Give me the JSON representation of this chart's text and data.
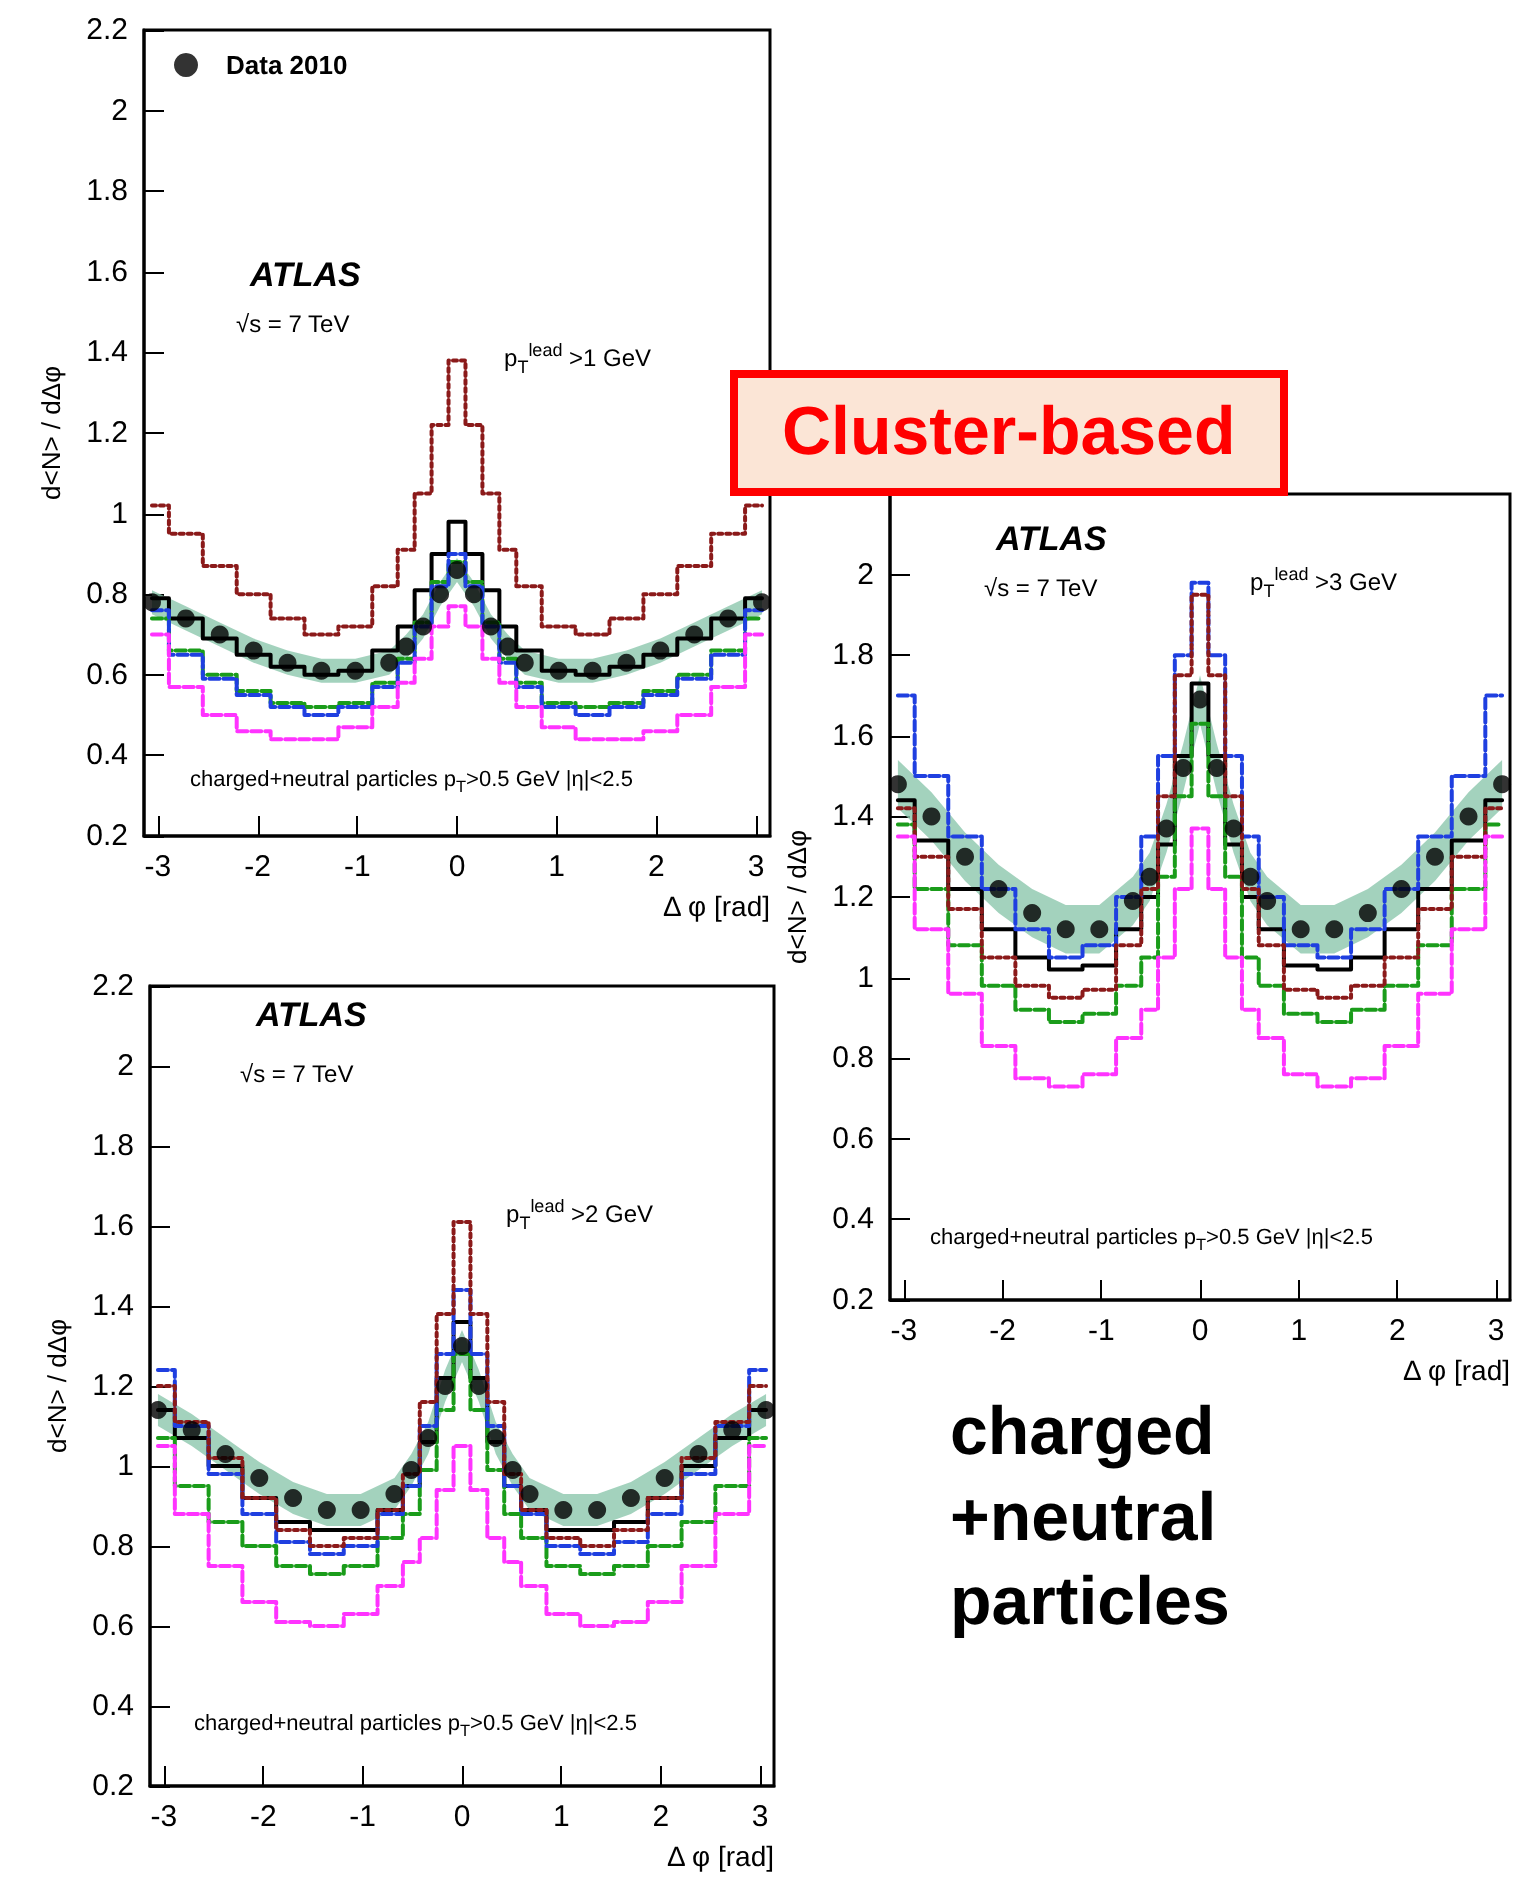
{
  "chart_data": [
    {
      "type": "step",
      "xlabel": "Δ φ [rad]",
      "ylabel": "d<N> / dΔφ",
      "xlim": [
        -3.14,
        3.14
      ],
      "ylim": [
        0.2,
        2.2
      ],
      "xticks": [
        -3,
        -2,
        -1,
        0,
        1,
        2,
        3
      ],
      "yticks": [
        0.2,
        0.4,
        0.6,
        0.8,
        1,
        1.2,
        1.4,
        1.6,
        1.8,
        2,
        2.2
      ],
      "grid": false,
      "legend": "top left",
      "annotations": [
        "ATLAS",
        "√s = 7 TeV",
        "p$_{T}$$^{lead}$ >1 GeV",
        "charged+neutral particles p$_{T}$>0.5 GeV  |η|<2.5"
      ],
      "x": [
        -3.06,
        -2.72,
        -2.38,
        -2.04,
        -1.7,
        -1.36,
        -1.02,
        -0.68,
        -0.51,
        -0.34,
        -0.17,
        0,
        0.17,
        0.34,
        0.51,
        0.68,
        1.02,
        1.36,
        1.7,
        2.04,
        2.38,
        2.72,
        3.06
      ],
      "series": [
        {
          "name": "Data 2010",
          "type": "scatter",
          "marker": "circle",
          "color": "#000000",
          "values": [
            0.78,
            0.74,
            0.7,
            0.66,
            0.63,
            0.61,
            0.61,
            0.63,
            0.67,
            0.72,
            0.8,
            0.86,
            0.8,
            0.72,
            0.67,
            0.63,
            0.61,
            0.61,
            0.63,
            0.66,
            0.7,
            0.74,
            0.78
          ],
          "lower": [
            0.75,
            0.71,
            0.67,
            0.63,
            0.6,
            0.58,
            0.58,
            0.6,
            0.64,
            0.69,
            0.77,
            0.83,
            0.77,
            0.69,
            0.64,
            0.6,
            0.58,
            0.58,
            0.6,
            0.63,
            0.67,
            0.71,
            0.75
          ],
          "upper": [
            0.81,
            0.77,
            0.73,
            0.69,
            0.66,
            0.64,
            0.64,
            0.66,
            0.7,
            0.75,
            0.83,
            0.89,
            0.83,
            0.75,
            0.7,
            0.66,
            0.64,
            0.64,
            0.66,
            0.69,
            0.73,
            0.77,
            0.81
          ]
        },
        {
          "color": "#000000",
          "line_style": "solid",
          "values": [
            0.79,
            0.74,
            0.69,
            0.65,
            0.62,
            0.6,
            0.61,
            0.66,
            0.72,
            0.81,
            0.9,
            0.98,
            0.9,
            0.81,
            0.72,
            0.66,
            0.61,
            0.6,
            0.62,
            0.65,
            0.69,
            0.74,
            0.79
          ]
        },
        {
          "color": "#1a9c1a",
          "line_style": "dashed",
          "values": [
            0.74,
            0.66,
            0.6,
            0.56,
            0.53,
            0.52,
            0.53,
            0.58,
            0.64,
            0.73,
            0.83,
            0.88,
            0.83,
            0.73,
            0.64,
            0.58,
            0.53,
            0.52,
            0.53,
            0.56,
            0.6,
            0.66,
            0.74
          ]
        },
        {
          "color": "#1f3fe0",
          "line_style": "dashed",
          "values": [
            0.76,
            0.65,
            0.59,
            0.55,
            0.52,
            0.5,
            0.52,
            0.57,
            0.63,
            0.72,
            0.82,
            0.9,
            0.82,
            0.72,
            0.63,
            0.57,
            0.52,
            0.5,
            0.52,
            0.55,
            0.59,
            0.65,
            0.76
          ]
        },
        {
          "color": "#8b1a1a",
          "line_style": "dotted",
          "values": [
            1.02,
            0.95,
            0.87,
            0.8,
            0.74,
            0.7,
            0.72,
            0.82,
            0.91,
            1.05,
            1.22,
            1.38,
            1.22,
            1.05,
            0.91,
            0.82,
            0.72,
            0.7,
            0.74,
            0.8,
            0.87,
            0.95,
            1.02
          ]
        },
        {
          "color": "#ff33ff",
          "line_style": "dashed",
          "values": [
            0.7,
            0.57,
            0.5,
            0.46,
            0.44,
            0.44,
            0.47,
            0.52,
            0.58,
            0.64,
            0.72,
            0.77,
            0.72,
            0.64,
            0.58,
            0.52,
            0.47,
            0.44,
            0.44,
            0.46,
            0.5,
            0.57,
            0.7
          ]
        }
      ]
    },
    {
      "type": "step",
      "title": "Cluster-based",
      "xlabel": "Δ φ [rad]",
      "ylabel": "d<N> / dΔφ",
      "xlim": [
        -3.14,
        3.14
      ],
      "ylim": [
        0.2,
        2.2
      ],
      "xticks": [
        -3,
        -2,
        -1,
        0,
        1,
        2,
        3
      ],
      "yticks": [
        0.2,
        0.4,
        0.6,
        0.8,
        1,
        1.2,
        1.4,
        1.6,
        1.8,
        2,
        {
          "value": 2.2,
          "label": null
        }
      ],
      "grid": false,
      "annotations": [
        "ATLAS",
        "√s = 7 TeV",
        "p$_{T}$$^{lead}$ >3 GeV",
        "charged+neutral particles p$_{T}$>0.5 GeV  |η|<2.5",
        "charged +neutral particles"
      ],
      "x": [
        -3.06,
        -2.72,
        -2.38,
        -2.04,
        -1.7,
        -1.36,
        -1.02,
        -0.68,
        -0.51,
        -0.34,
        -0.17,
        0,
        0.17,
        0.34,
        0.51,
        0.68,
        1.02,
        1.36,
        1.7,
        2.04,
        2.38,
        2.72,
        3.06
      ],
      "series": [
        {
          "type": "scatter",
          "marker": "circle",
          "color": "#000000",
          "values": [
            1.48,
            1.4,
            1.3,
            1.22,
            1.16,
            1.12,
            1.12,
            1.19,
            1.25,
            1.37,
            1.52,
            1.69,
            1.52,
            1.37,
            1.25,
            1.19,
            1.12,
            1.12,
            1.16,
            1.22,
            1.3,
            1.4,
            1.48
          ],
          "lower": [
            1.42,
            1.34,
            1.24,
            1.16,
            1.1,
            1.06,
            1.06,
            1.13,
            1.19,
            1.31,
            1.46,
            1.63,
            1.46,
            1.31,
            1.19,
            1.13,
            1.06,
            1.06,
            1.1,
            1.16,
            1.24,
            1.34,
            1.42
          ],
          "upper": [
            1.54,
            1.46,
            1.36,
            1.28,
            1.22,
            1.18,
            1.18,
            1.25,
            1.31,
            1.43,
            1.58,
            1.75,
            1.58,
            1.43,
            1.31,
            1.25,
            1.18,
            1.18,
            1.22,
            1.28,
            1.36,
            1.46,
            1.54
          ]
        },
        {
          "color": "#000000",
          "line_style": "solid",
          "values": [
            1.44,
            1.34,
            1.22,
            1.12,
            1.05,
            1.02,
            1.03,
            1.12,
            1.2,
            1.33,
            1.55,
            1.73,
            1.55,
            1.33,
            1.2,
            1.12,
            1.03,
            1.02,
            1.05,
            1.12,
            1.22,
            1.34,
            1.44
          ]
        },
        {
          "color": "#1a9c1a",
          "line_style": "dashed",
          "values": [
            1.38,
            1.22,
            1.08,
            0.98,
            0.92,
            0.89,
            0.91,
            0.98,
            1.05,
            1.25,
            1.45,
            1.63,
            1.45,
            1.25,
            1.05,
            0.98,
            0.91,
            0.89,
            0.92,
            0.98,
            1.08,
            1.22,
            1.38
          ]
        },
        {
          "color": "#1f3fe0",
          "line_style": "dashed",
          "values": [
            1.7,
            1.5,
            1.35,
            1.22,
            1.12,
            1.05,
            1.08,
            1.2,
            1.35,
            1.55,
            1.8,
            1.98,
            1.8,
            1.55,
            1.35,
            1.2,
            1.08,
            1.05,
            1.12,
            1.22,
            1.35,
            1.5,
            1.7
          ]
        },
        {
          "color": "#8b1a1a",
          "line_style": "dotted",
          "values": [
            1.42,
            1.3,
            1.17,
            1.05,
            0.98,
            0.95,
            0.97,
            1.08,
            1.22,
            1.45,
            1.75,
            1.95,
            1.75,
            1.45,
            1.22,
            1.08,
            0.97,
            0.95,
            0.98,
            1.05,
            1.17,
            1.3,
            1.42
          ]
        },
        {
          "color": "#ff33ff",
          "line_style": "dashed",
          "values": [
            1.35,
            1.12,
            0.96,
            0.83,
            0.75,
            0.73,
            0.76,
            0.85,
            0.92,
            1.05,
            1.22,
            1.37,
            1.22,
            1.05,
            0.92,
            0.85,
            0.76,
            0.73,
            0.75,
            0.83,
            0.96,
            1.12,
            1.35
          ]
        }
      ]
    },
    {
      "type": "step",
      "xlabel": "Δ φ [rad]",
      "ylabel": "d<N> / dΔφ",
      "xlim": [
        -3.14,
        3.14
      ],
      "ylim": [
        0.2,
        2.2
      ],
      "xticks": [
        -3,
        -2,
        -1,
        0,
        1,
        2,
        3
      ],
      "yticks": [
        0.2,
        0.4,
        0.6,
        0.8,
        1,
        1.2,
        1.4,
        1.6,
        1.8,
        2,
        2.2
      ],
      "grid": false,
      "annotations": [
        "ATLAS",
        "√s = 7 TeV",
        "p$_{T}$$^{lead}$ >2 GeV",
        "charged+neutral particles p$_{T}$>0.5 GeV  |η|<2.5"
      ],
      "x": [
        -3.06,
        -2.72,
        -2.38,
        -2.04,
        -1.7,
        -1.36,
        -1.02,
        -0.68,
        -0.51,
        -0.34,
        -0.17,
        0,
        0.17,
        0.34,
        0.51,
        0.68,
        1.02,
        1.36,
        1.7,
        2.04,
        2.38,
        2.72,
        3.06
      ],
      "series": [
        {
          "type": "scatter",
          "marker": "circle",
          "color": "#000000",
          "values": [
            1.14,
            1.09,
            1.03,
            0.97,
            0.92,
            0.89,
            0.89,
            0.93,
            0.99,
            1.07,
            1.2,
            1.3,
            1.2,
            1.07,
            0.99,
            0.93,
            0.89,
            0.89,
            0.92,
            0.97,
            1.03,
            1.09,
            1.14
          ],
          "lower": [
            1.1,
            1.05,
            0.99,
            0.93,
            0.88,
            0.85,
            0.85,
            0.89,
            0.95,
            1.03,
            1.16,
            1.26,
            1.16,
            1.03,
            0.95,
            0.89,
            0.85,
            0.85,
            0.88,
            0.93,
            0.99,
            1.05,
            1.1
          ],
          "upper": [
            1.18,
            1.13,
            1.07,
            1.01,
            0.96,
            0.93,
            0.93,
            0.97,
            1.03,
            1.11,
            1.24,
            1.34,
            1.24,
            1.11,
            1.03,
            0.97,
            0.93,
            0.93,
            0.96,
            1.01,
            1.07,
            1.13,
            1.18
          ]
        },
        {
          "color": "#000000",
          "line_style": "solid",
          "values": [
            1.14,
            1.07,
            1.0,
            0.92,
            0.86,
            0.84,
            0.84,
            0.89,
            0.95,
            1.06,
            1.22,
            1.36,
            1.22,
            1.06,
            0.95,
            0.89,
            0.84,
            0.84,
            0.86,
            0.92,
            1.0,
            1.07,
            1.14
          ]
        },
        {
          "color": "#1a9c1a",
          "line_style": "dashed",
          "values": [
            1.07,
            0.95,
            0.86,
            0.8,
            0.75,
            0.73,
            0.75,
            0.82,
            0.88,
            0.99,
            1.14,
            1.28,
            1.14,
            0.99,
            0.88,
            0.82,
            0.75,
            0.73,
            0.75,
            0.8,
            0.86,
            0.95,
            1.07
          ]
        },
        {
          "color": "#1f3fe0",
          "line_style": "dashed",
          "values": [
            1.24,
            1.1,
            0.98,
            0.88,
            0.81,
            0.78,
            0.8,
            0.88,
            0.95,
            1.1,
            1.28,
            1.44,
            1.28,
            1.1,
            0.95,
            0.88,
            0.8,
            0.78,
            0.81,
            0.88,
            0.98,
            1.1,
            1.24
          ]
        },
        {
          "color": "#8b1a1a",
          "line_style": "dotted",
          "values": [
            1.2,
            1.11,
            1.02,
            0.92,
            0.84,
            0.8,
            0.82,
            0.89,
            0.98,
            1.16,
            1.38,
            1.61,
            1.38,
            1.16,
            0.98,
            0.89,
            0.82,
            0.8,
            0.84,
            0.92,
            1.02,
            1.11,
            1.2
          ]
        },
        {
          "color": "#ff33ff",
          "line_style": "dashed",
          "values": [
            1.05,
            0.88,
            0.75,
            0.66,
            0.61,
            0.6,
            0.63,
            0.7,
            0.76,
            0.82,
            0.94,
            1.05,
            0.94,
            0.82,
            0.76,
            0.7,
            0.63,
            0.6,
            0.61,
            0.66,
            0.75,
            0.88,
            1.05
          ]
        }
      ]
    }
  ]
}
